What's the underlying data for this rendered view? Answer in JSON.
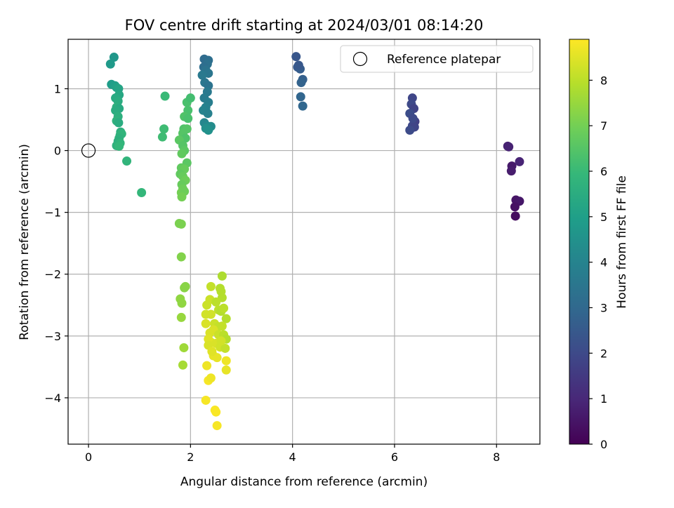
{
  "chart_data": {
    "type": "scatter",
    "title": "FOV centre drift starting at 2024/03/01 08:14:20",
    "xlabel": "Angular distance from reference (arcmin)",
    "ylabel": "Rotation from reference (arcmin)",
    "xlim": [
      -0.4,
      8.85
    ],
    "ylim": [
      -4.75,
      1.8
    ],
    "xticks": [
      0,
      2,
      4,
      6,
      8
    ],
    "xtick_labels": [
      "0",
      "2",
      "4",
      "6",
      "8"
    ],
    "yticks": [
      -4,
      -3,
      -2,
      -1,
      0,
      1
    ],
    "ytick_labels": [
      "−4",
      "−3",
      "−2",
      "−1",
      "0",
      "1"
    ],
    "grid": true,
    "legend": {
      "placement": "top-right",
      "entries": [
        "Reference platepar"
      ]
    },
    "reference_point": {
      "name": "Reference platepar",
      "x": 0,
      "y": 0
    },
    "colorbar": {
      "label": "Hours from first FF file",
      "colormap": "viridis",
      "range": [
        0,
        8.9
      ],
      "ticks": [
        0,
        1,
        2,
        3,
        4,
        5,
        6,
        7,
        8
      ],
      "tick_labels": [
        "0",
        "1",
        "2",
        "3",
        "4",
        "5",
        "6",
        "7",
        "8"
      ]
    },
    "points": [
      [
        8.22,
        0.07,
        0.8
      ],
      [
        8.24,
        0.06,
        0.85
      ],
      [
        8.3,
        -0.25,
        0.6
      ],
      [
        8.29,
        -0.33,
        0.7
      ],
      [
        8.45,
        -0.18,
        0.9
      ],
      [
        8.38,
        -0.8,
        0.5
      ],
      [
        8.45,
        -0.82,
        0.55
      ],
      [
        8.36,
        -0.91,
        0.4
      ],
      [
        8.37,
        -1.06,
        0.3
      ],
      [
        6.35,
        0.85,
        1.9
      ],
      [
        6.33,
        0.75,
        2.0
      ],
      [
        6.38,
        0.68,
        1.8
      ],
      [
        6.3,
        0.6,
        2.1
      ],
      [
        6.4,
        0.47,
        1.7
      ],
      [
        6.35,
        0.4,
        1.95
      ],
      [
        6.39,
        0.38,
        1.85
      ],
      [
        6.3,
        0.33,
        2.05
      ],
      [
        6.36,
        0.52,
        2.0
      ],
      [
        4.07,
        1.52,
        2.4
      ],
      [
        4.1,
        1.35,
        2.5
      ],
      [
        4.15,
        1.32,
        2.6
      ],
      [
        4.2,
        1.15,
        2.7
      ],
      [
        4.17,
        1.1,
        2.8
      ],
      [
        4.16,
        0.87,
        2.9
      ],
      [
        4.2,
        0.72,
        2.95
      ],
      [
        4.12,
        1.38,
        2.45
      ],
      [
        2.27,
        1.48,
        3.1
      ],
      [
        2.35,
        1.46,
        3.2
      ],
      [
        2.33,
        1.4,
        3.3
      ],
      [
        2.26,
        1.35,
        3.2
      ],
      [
        2.3,
        1.3,
        3.4
      ],
      [
        2.35,
        1.25,
        3.5
      ],
      [
        2.23,
        1.22,
        3.6
      ],
      [
        2.28,
        1.1,
        3.5
      ],
      [
        2.35,
        1.05,
        3.4
      ],
      [
        2.33,
        0.95,
        3.6
      ],
      [
        2.27,
        0.85,
        3.7
      ],
      [
        2.35,
        0.78,
        3.8
      ],
      [
        2.3,
        0.7,
        3.9
      ],
      [
        2.25,
        0.65,
        4.0
      ],
      [
        2.34,
        0.6,
        3.9
      ],
      [
        2.27,
        0.45,
        4.1
      ],
      [
        2.32,
        0.4,
        4.2
      ],
      [
        2.4,
        0.39,
        4.3
      ],
      [
        2.3,
        0.36,
        4.4
      ],
      [
        2.35,
        0.33,
        4.5
      ],
      [
        0.5,
        1.51,
        4.7
      ],
      [
        0.43,
        1.4,
        4.8
      ],
      [
        0.45,
        1.07,
        4.9
      ],
      [
        0.52,
        1.05,
        5.0
      ],
      [
        0.55,
        1.02,
        5.1
      ],
      [
        0.59,
        1.0,
        5.2
      ],
      [
        0.6,
        0.9,
        5.3
      ],
      [
        0.53,
        0.85,
        5.4
      ],
      [
        0.58,
        0.8,
        5.5
      ],
      [
        0.55,
        0.7,
        5.6
      ],
      [
        0.6,
        0.68,
        5.4
      ],
      [
        0.53,
        0.65,
        5.5
      ],
      [
        0.58,
        0.55,
        5.6
      ],
      [
        0.55,
        0.48,
        5.7
      ],
      [
        0.59,
        0.45,
        5.5
      ],
      [
        0.63,
        0.3,
        5.6
      ],
      [
        0.62,
        0.25,
        5.7
      ],
      [
        0.65,
        0.27,
        5.8
      ],
      [
        0.6,
        0.2,
        5.7
      ],
      [
        0.58,
        0.15,
        5.6
      ],
      [
        0.62,
        0.12,
        5.8
      ],
      [
        0.55,
        0.08,
        5.7
      ],
      [
        0.6,
        0.07,
        5.9
      ],
      [
        0.75,
        -0.17,
        5.8
      ],
      [
        1.04,
        -0.68,
        5.9
      ],
      [
        1.5,
        0.88,
        6.0
      ],
      [
        1.48,
        0.35,
        6.1
      ],
      [
        1.45,
        0.22,
        6.1
      ],
      [
        1.93,
        0.78,
        6.3
      ],
      [
        2.0,
        0.85,
        6.2
      ],
      [
        1.95,
        0.65,
        6.3
      ],
      [
        1.88,
        0.55,
        6.4
      ],
      [
        1.95,
        0.52,
        6.3
      ],
      [
        1.87,
        0.35,
        6.4
      ],
      [
        1.93,
        0.35,
        6.5
      ],
      [
        1.85,
        0.28,
        6.5
      ],
      [
        1.9,
        0.2,
        6.4
      ],
      [
        1.78,
        0.17,
        6.6
      ],
      [
        1.85,
        0.08,
        6.5
      ],
      [
        1.88,
        0.0,
        6.6
      ],
      [
        1.83,
        -0.05,
        6.7
      ],
      [
        1.93,
        -0.2,
        6.6
      ],
      [
        1.82,
        -0.28,
        6.7
      ],
      [
        1.88,
        -0.3,
        6.8
      ],
      [
        1.8,
        -0.38,
        6.7
      ],
      [
        1.85,
        -0.42,
        6.8
      ],
      [
        1.9,
        -0.48,
        6.9
      ],
      [
        1.83,
        -0.55,
        6.8
      ],
      [
        1.85,
        -0.62,
        6.9
      ],
      [
        1.82,
        -0.68,
        7.0
      ],
      [
        1.88,
        -0.66,
        6.9
      ],
      [
        1.83,
        -0.75,
        7.0
      ],
      [
        1.78,
        -1.18,
        7.1
      ],
      [
        1.82,
        -1.19,
        7.1
      ],
      [
        1.82,
        -1.72,
        7.2
      ],
      [
        1.9,
        -2.2,
        7.3
      ],
      [
        1.88,
        -2.22,
        7.3
      ],
      [
        1.8,
        -2.4,
        7.4
      ],
      [
        1.83,
        -2.47,
        7.4
      ],
      [
        1.82,
        -2.7,
        7.5
      ],
      [
        1.87,
        -3.19,
        7.6
      ],
      [
        1.85,
        -3.47,
        7.7
      ],
      [
        2.62,
        -2.03,
        7.8
      ],
      [
        2.58,
        -2.23,
        7.9
      ],
      [
        2.6,
        -2.28,
        7.9
      ],
      [
        2.4,
        -2.2,
        8.1
      ],
      [
        2.62,
        -2.38,
        7.9
      ],
      [
        2.38,
        -2.41,
        8.2
      ],
      [
        2.32,
        -2.5,
        8.2
      ],
      [
        2.5,
        -2.45,
        8.0
      ],
      [
        2.55,
        -2.58,
        8.0
      ],
      [
        2.6,
        -2.6,
        7.9
      ],
      [
        2.65,
        -2.55,
        8.0
      ],
      [
        2.7,
        -2.72,
        7.9
      ],
      [
        2.3,
        -2.65,
        8.3
      ],
      [
        2.4,
        -2.65,
        8.3
      ],
      [
        2.47,
        -2.8,
        8.2
      ],
      [
        2.55,
        -2.85,
        8.1
      ],
      [
        2.62,
        -2.84,
        8.1
      ],
      [
        2.3,
        -2.8,
        8.4
      ],
      [
        2.38,
        -2.95,
        8.4
      ],
      [
        2.45,
        -2.9,
        8.4
      ],
      [
        2.55,
        -2.98,
        8.2
      ],
      [
        2.65,
        -2.98,
        8.0
      ],
      [
        2.7,
        -3.05,
        7.9
      ],
      [
        2.35,
        -3.05,
        8.5
      ],
      [
        2.4,
        -3.1,
        8.5
      ],
      [
        2.5,
        -3.12,
        8.4
      ],
      [
        2.58,
        -3.18,
        8.3
      ],
      [
        2.68,
        -3.2,
        8.1
      ],
      [
        2.35,
        -3.15,
        8.4
      ],
      [
        2.45,
        -3.32,
        8.6
      ],
      [
        2.52,
        -3.35,
        8.6
      ],
      [
        2.7,
        -3.4,
        8.7
      ],
      [
        2.7,
        -3.55,
        8.6
      ],
      [
        2.32,
        -3.48,
        8.7
      ],
      [
        2.35,
        -3.72,
        8.8
      ],
      [
        2.4,
        -3.68,
        8.7
      ],
      [
        2.3,
        -4.04,
        8.8
      ],
      [
        2.48,
        -4.2,
        8.85
      ],
      [
        2.5,
        -4.23,
        8.85
      ],
      [
        2.52,
        -4.45,
        8.8
      ],
      [
        2.42,
        -3.25,
        8.5
      ],
      [
        2.6,
        -3.08,
        8.3
      ]
    ]
  }
}
